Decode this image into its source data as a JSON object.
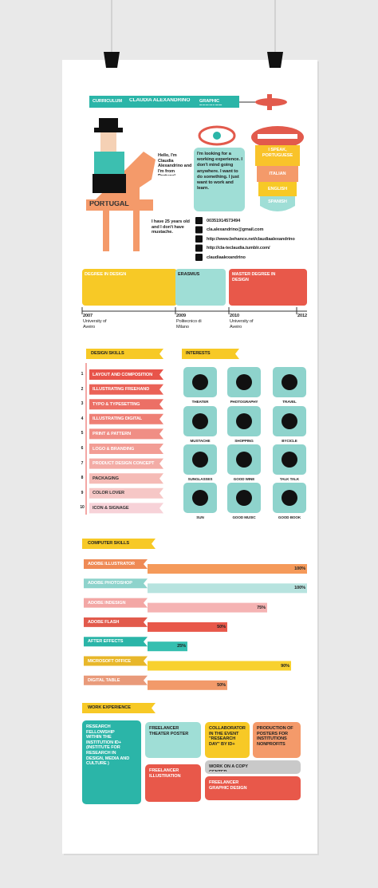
{
  "header": {
    "curriculum": "CURRICULUM",
    "name": "CLAUDIA ALEXANDRINO",
    "role": "GRAPHIC DESIGNER"
  },
  "intro": {
    "hello": "Hello, I'm Claudia Alexandrino and I'm from Portugal.",
    "country": "PORTUGAL",
    "age": "I have 25 years old and I don't have mustache.",
    "looking": "I'm looking for a working experience. I don't mind going anywhere. I want to do something. I just want to work and learn."
  },
  "languages": {
    "title": "I SPEAK,",
    "items": [
      "PORTUGUESE",
      "ITALIAN",
      "ENGLISH",
      "SPANISH"
    ]
  },
  "contacts": [
    "00351914573494",
    "cla.alexandrino@gmail.com",
    "http://www.behance.net/claudiaalexandrino",
    "http://cla-teclaudia.tumblr.com/",
    "claudiaalexandrino"
  ],
  "timeline": {
    "items": [
      "DEGREE IN DESIGN",
      "ERASMUS",
      "MASTER DEGREE IN DESIGN"
    ],
    "years": [
      "2007",
      "2009",
      "2010",
      "2012"
    ],
    "places": [
      "University of Aveiro",
      "Politecnico di Milano",
      "University of Aveiro"
    ]
  },
  "design_skills": {
    "title": "DESIGN SKILLS",
    "numbers": [
      "1",
      "2",
      "3",
      "4",
      "5",
      "6",
      "7",
      "8",
      "9",
      "10"
    ],
    "items": [
      "LAYOUT AND COMPOSITION",
      "ILLUSTRATING FREEHAND",
      "TYPO & TYPESETTING",
      "ILLUSTRATING DIGITAL",
      "PRINT & PATTERN",
      "LOGO & BRANDING",
      "PRODUCT DESIGN CONCEPT",
      "PACKAGING",
      "COLOR LOVER",
      "ICON & SIGNAGE"
    ]
  },
  "interests": {
    "title": "INTERESTS",
    "items": [
      "THEATER",
      "PHOTOGRAPHY",
      "TRAVEL",
      "MUSTACHE",
      "SHOPPING",
      "BYCICLE",
      "SUNGLASSES",
      "GOOD WINE",
      "TALK TALK",
      "SUN",
      "GOOD MUSIC",
      "GOOD BOOK"
    ]
  },
  "computer_skills": {
    "title": "COMPUTER SKILLS",
    "items": [
      {
        "name": "ADOBE ILLUSTRATOR",
        "level": "100%"
      },
      {
        "name": "ADOBE PHOTOSHOP",
        "level": "100%"
      },
      {
        "name": "ADOBE INDESIGN",
        "level": "75%"
      },
      {
        "name": "ADOBE FLASH",
        "level": "50%"
      },
      {
        "name": "AFTER EFFECTS",
        "level": "25%"
      },
      {
        "name": "MICROSOFT OFFICE",
        "level": "90%"
      },
      {
        "name": "DIGITAL TABLE",
        "level": "50%"
      }
    ]
  },
  "work_experience": {
    "title": "WORK EXPERIENCE",
    "items": [
      "RESEARCH FELLOWSHIP WITHIN THE INSTITUTION ID+ (INSTITUTE FOR RESEARCH IN DESIGN, MEDIA AND CULTURE )",
      "FREELANCER THEATER POSTER",
      "COLLABORATOR IN THE EVENT \"RESEARCH DAY\" BY ID+",
      "PRODUCTION OF POSTERS FOR INSTITUTIONS NONPROFITS",
      "FREELANCER ILLUSTRATION",
      "WORK ON A COPY CENTER",
      "FREELANCER GRAPHIC DESIGN"
    ]
  }
}
